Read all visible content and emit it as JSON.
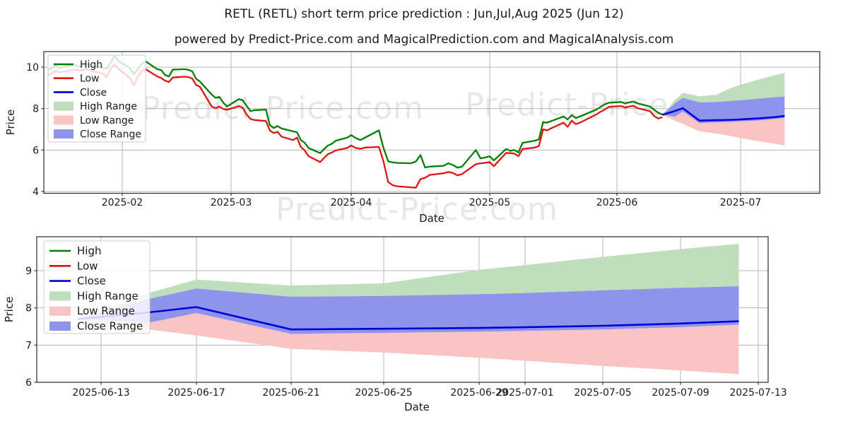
{
  "title": "RETL (RETL) short term price prediction : Jun,Jul,Aug 2025 (Jun 12)",
  "subtitle": "powered by Predict-Price.com and MagicalPrediction.com and MagicalAnalysis.com",
  "watermark_text": "Predict-Price.com",
  "colors": {
    "high_line": "#007f00",
    "low_line": "#e31212",
    "close_line": "#0000d6",
    "high_range_fill": "#bfdfbc",
    "low_range_fill": "#fbc4c4",
    "close_range_fill": "#8e93ec",
    "grid": "#b6b6b6",
    "axis": "#2a2a2a",
    "text": "#1a1a1a",
    "watermark": "#b0b0b0"
  },
  "legend_items": [
    {
      "label": "High",
      "swatch": "line",
      "color_key": "high_line"
    },
    {
      "label": "Low",
      "swatch": "line",
      "color_key": "low_line"
    },
    {
      "label": "Close",
      "swatch": "line",
      "color_key": "close_line"
    },
    {
      "label": "High Range",
      "swatch": "patch",
      "color_key": "high_range_fill"
    },
    {
      "label": "Low Range",
      "swatch": "patch",
      "color_key": "low_range_fill"
    },
    {
      "label": "Close Range",
      "swatch": "patch",
      "color_key": "close_range_fill"
    }
  ],
  "chart_data": [
    {
      "name": "history-with-forecast",
      "type": "line",
      "xlabel": "Date",
      "ylabel": "Price",
      "grid": true,
      "legend_position": "upper left",
      "x_tick_labels": [
        "2025-02",
        "2025-03",
        "2025-04",
        "2025-05",
        "2025-06",
        "2025-07"
      ],
      "y_ticks": [
        4,
        6,
        8,
        10
      ],
      "ylim": [
        3.9,
        10.75
      ],
      "history": {
        "dates": [
          "2025-01-13",
          "2025-01-14",
          "2025-01-15",
          "2025-01-16",
          "2025-01-17",
          "2025-01-20",
          "2025-01-21",
          "2025-01-22",
          "2025-01-23",
          "2025-01-24",
          "2025-01-27",
          "2025-01-28",
          "2025-01-29",
          "2025-01-30",
          "2025-01-31",
          "2025-02-03",
          "2025-02-04",
          "2025-02-05",
          "2025-02-06",
          "2025-02-07",
          "2025-02-10",
          "2025-02-11",
          "2025-02-12",
          "2025-02-13",
          "2025-02-14",
          "2025-02-17",
          "2025-02-18",
          "2025-02-19",
          "2025-02-20",
          "2025-02-21",
          "2025-02-24",
          "2025-02-25",
          "2025-02-26",
          "2025-02-27",
          "2025-02-28",
          "2025-03-03",
          "2025-03-04",
          "2025-03-05",
          "2025-03-06",
          "2025-03-07",
          "2025-03-10",
          "2025-03-11",
          "2025-03-12",
          "2025-03-13",
          "2025-03-14",
          "2025-03-17",
          "2025-03-18",
          "2025-03-19",
          "2025-03-20",
          "2025-03-21",
          "2025-03-24",
          "2025-03-25",
          "2025-03-26",
          "2025-03-27",
          "2025-03-28",
          "2025-03-31",
          "2025-04-01",
          "2025-04-02",
          "2025-04-03",
          "2025-04-04",
          "2025-04-07",
          "2025-04-08",
          "2025-04-09",
          "2025-04-10",
          "2025-04-11",
          "2025-04-14",
          "2025-04-15",
          "2025-04-16",
          "2025-04-17",
          "2025-04-18",
          "2025-04-21",
          "2025-04-22",
          "2025-04-23",
          "2025-04-24",
          "2025-04-25",
          "2025-04-28",
          "2025-04-29",
          "2025-04-30",
          "2025-05-01",
          "2025-05-02",
          "2025-05-05",
          "2025-05-06",
          "2025-05-07",
          "2025-05-08",
          "2025-05-09",
          "2025-05-12",
          "2025-05-13",
          "2025-05-14",
          "2025-05-15",
          "2025-05-16",
          "2025-05-19",
          "2025-05-20",
          "2025-05-21",
          "2025-05-22",
          "2025-05-23",
          "2025-05-27",
          "2025-05-28",
          "2025-05-29",
          "2025-05-30",
          "2025-06-02",
          "2025-06-03",
          "2025-06-04",
          "2025-06-05",
          "2025-06-06",
          "2025-06-09",
          "2025-06-10",
          "2025-06-11",
          "2025-06-12"
        ],
        "high": [
          9.88,
          9.95,
          10.06,
          9.94,
          10.0,
          10.12,
          10.02,
          10.08,
          10.16,
          10.05,
          9.98,
          9.92,
          10.2,
          10.55,
          10.3,
          9.95,
          9.65,
          9.9,
          10.15,
          10.28,
          9.9,
          9.86,
          9.62,
          9.55,
          9.88,
          9.9,
          9.87,
          9.8,
          9.44,
          9.3,
          8.68,
          8.52,
          8.56,
          8.28,
          8.1,
          8.46,
          8.4,
          8.14,
          7.88,
          7.92,
          7.95,
          7.2,
          7.06,
          7.16,
          7.04,
          6.9,
          6.86,
          6.48,
          6.35,
          6.1,
          5.85,
          6.05,
          6.22,
          6.3,
          6.45,
          6.6,
          6.72,
          6.58,
          6.48,
          6.6,
          6.95,
          6.1,
          5.46,
          5.4,
          5.38,
          5.36,
          5.45,
          5.76,
          5.16,
          5.2,
          5.24,
          5.36,
          5.28,
          5.15,
          5.2,
          6.0,
          5.6,
          5.64,
          5.7,
          5.5,
          6.05,
          5.96,
          6.0,
          5.88,
          6.35,
          6.45,
          6.52,
          7.35,
          7.32,
          7.4,
          7.62,
          7.48,
          7.68,
          7.55,
          7.62,
          7.95,
          8.08,
          8.2,
          8.28,
          8.32,
          8.25,
          8.3,
          8.34,
          8.25,
          8.1,
          7.95,
          7.8,
          7.72
        ],
        "low": [
          9.6,
          9.7,
          9.82,
          9.75,
          9.78,
          9.88,
          9.84,
          9.86,
          9.92,
          9.82,
          9.7,
          9.52,
          9.9,
          10.12,
          9.92,
          9.48,
          9.12,
          9.55,
          9.8,
          9.9,
          9.55,
          9.48,
          9.35,
          9.28,
          9.5,
          9.54,
          9.52,
          9.45,
          9.14,
          9.05,
          8.1,
          8.02,
          8.1,
          7.98,
          7.94,
          8.12,
          8.04,
          7.72,
          7.5,
          7.45,
          7.4,
          6.95,
          6.82,
          6.88,
          6.65,
          6.48,
          6.6,
          6.15,
          5.98,
          5.7,
          5.42,
          5.62,
          5.8,
          5.88,
          5.98,
          6.1,
          6.22,
          6.1,
          6.06,
          6.12,
          6.15,
          5.45,
          4.46,
          4.3,
          4.25,
          4.2,
          4.18,
          4.6,
          4.66,
          4.8,
          4.88,
          4.94,
          4.9,
          4.78,
          4.84,
          5.32,
          5.36,
          5.38,
          5.42,
          5.22,
          5.86,
          5.85,
          5.83,
          5.7,
          6.05,
          6.12,
          6.2,
          7.0,
          6.95,
          7.05,
          7.32,
          7.12,
          7.42,
          7.25,
          7.32,
          7.72,
          7.85,
          7.95,
          8.08,
          8.12,
          8.05,
          8.1,
          8.13,
          8.02,
          7.88,
          7.65,
          7.52,
          7.58
        ],
        "series_names": [
          "High",
          "Low"
        ]
      },
      "forecast": {
        "dates": [
          "2025-06-12",
          "2025-06-15",
          "2025-06-17",
          "2025-06-21",
          "2025-06-25",
          "2025-06-29",
          "2025-07-01",
          "2025-07-05",
          "2025-07-09",
          "2025-07-12"
        ],
        "close": [
          7.7,
          7.88,
          8.02,
          7.42,
          7.44,
          7.46,
          7.48,
          7.52,
          7.58,
          7.64
        ],
        "close_upper": [
          7.7,
          8.24,
          8.52,
          8.3,
          8.32,
          8.37,
          8.4,
          8.47,
          8.54,
          8.58
        ],
        "close_lower": [
          7.7,
          7.6,
          7.86,
          7.3,
          7.33,
          7.36,
          7.38,
          7.42,
          7.48,
          7.55
        ],
        "high_upper": [
          7.7,
          8.4,
          8.76,
          8.6,
          8.66,
          9.02,
          9.15,
          9.37,
          9.58,
          9.72
        ],
        "low_lower": [
          7.7,
          7.42,
          7.26,
          6.9,
          6.8,
          6.66,
          6.58,
          6.44,
          6.32,
          6.22
        ],
        "series_names": [
          "Close",
          "High Range",
          "Low Range",
          "Close Range"
        ]
      }
    },
    {
      "name": "forecast-zoom",
      "type": "line",
      "xlabel": "Date",
      "ylabel": "Price",
      "grid": true,
      "legend_position": "upper left",
      "x_tick_labels": [
        "2025-06-13",
        "2025-06-17",
        "2025-06-21",
        "2025-06-25",
        "2025-06-29",
        "2025-07-01",
        "2025-07-05",
        "2025-07-09",
        "2025-07-13"
      ],
      "y_ticks": [
        6,
        7,
        8,
        9
      ],
      "ylim": [
        6.0,
        9.91
      ],
      "forecast": {
        "dates": [
          "2025-06-12",
          "2025-06-15",
          "2025-06-17",
          "2025-06-21",
          "2025-06-25",
          "2025-06-29",
          "2025-07-01",
          "2025-07-05",
          "2025-07-09",
          "2025-07-12"
        ],
        "close": [
          7.7,
          7.88,
          8.02,
          7.42,
          7.44,
          7.46,
          7.48,
          7.52,
          7.58,
          7.64
        ],
        "close_upper": [
          7.7,
          8.24,
          8.52,
          8.3,
          8.32,
          8.37,
          8.4,
          8.47,
          8.54,
          8.58
        ],
        "close_lower": [
          7.7,
          7.6,
          7.86,
          7.3,
          7.33,
          7.36,
          7.38,
          7.42,
          7.48,
          7.55
        ],
        "high_upper": [
          7.7,
          8.4,
          8.76,
          8.6,
          8.66,
          9.02,
          9.15,
          9.37,
          9.58,
          9.72
        ],
        "low_lower": [
          7.7,
          7.42,
          7.26,
          6.9,
          6.8,
          6.66,
          6.58,
          6.44,
          6.32,
          6.22
        ],
        "series_names": [
          "Close",
          "High Range",
          "Low Range",
          "Close Range"
        ]
      }
    }
  ]
}
